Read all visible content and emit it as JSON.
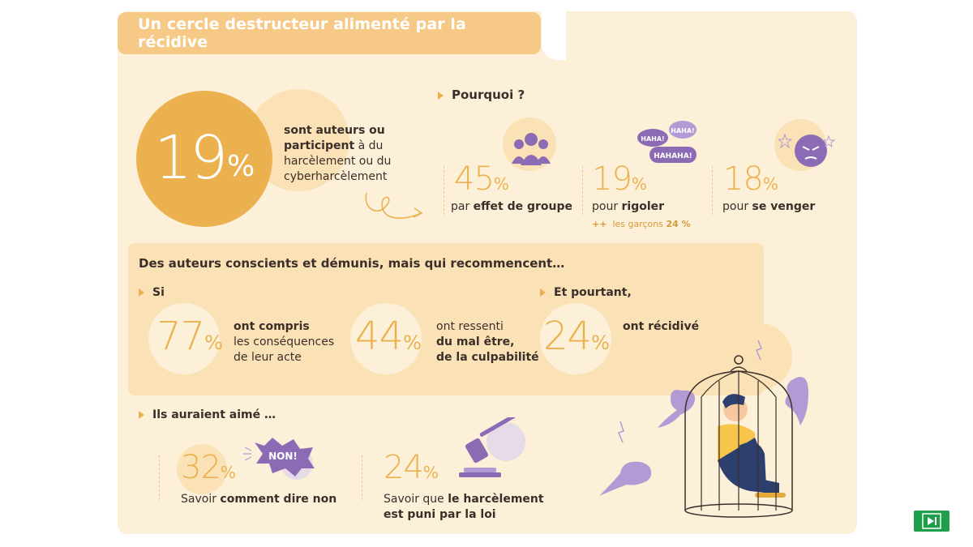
{
  "title": "Un cercle destructeur alimenté par la récidive",
  "intro": {
    "value": "19",
    "unit": "%",
    "text_bold_1": "sont auteurs ou",
    "text_bold_2": "participent",
    "text_3": " à du",
    "text_4": "harcèlement ou du",
    "text_5": "cyberharcèlement"
  },
  "pourquoi": {
    "label": "Pourquoi ?",
    "items": [
      {
        "value": "45",
        "unit": "%",
        "caption_pre": "par ",
        "caption_bold": "effet de groupe",
        "note": ""
      },
      {
        "value": "19",
        "unit": "%",
        "caption_pre": "pour ",
        "caption_bold": "rigoler",
        "note_prefix": "++",
        "note_text": "les garçons ",
        "note_bold": "24 %"
      },
      {
        "value": "18",
        "unit": "%",
        "caption_pre": "pour ",
        "caption_bold": "se venger",
        "note": ""
      }
    ],
    "bubbles": [
      "HAHA!",
      "HAHA!",
      "HAHAHA!"
    ]
  },
  "section2": {
    "title": "Des auteurs conscients et démunis, mais qui recommencent…",
    "si_label": "Si",
    "etpourtant_label": "Et pourtant,",
    "stats": [
      {
        "value": "77",
        "unit": "%",
        "line1_bold": "ont compris",
        "line2": "les conséquences",
        "line3": "de leur acte"
      },
      {
        "value": "44",
        "unit": "%",
        "line1": "ont ressenti",
        "line2_bold": "du mal être,",
        "line3_bold": "de la culpabilité"
      },
      {
        "value": "24",
        "unit": "%",
        "line1_bold": "ont récidivé"
      }
    ]
  },
  "section3": {
    "label": "Ils auraient aimé …",
    "items": [
      {
        "value": "32",
        "unit": "%",
        "caption_pre": "Savoir ",
        "caption_bold": "comment dire non",
        "badge": "NON!"
      },
      {
        "value": "24",
        "unit": "%",
        "caption_pre": "Savoir que ",
        "caption_bold_1": "le harcèlement",
        "caption_bold_2": "est puni par la loi"
      }
    ]
  },
  "colors": {
    "accent": "#ebb14f",
    "card": "#fdf0d8",
    "panel": "#fbe1b6",
    "purple": "#8c6bb5",
    "nav_green": "#1f9e4b"
  }
}
